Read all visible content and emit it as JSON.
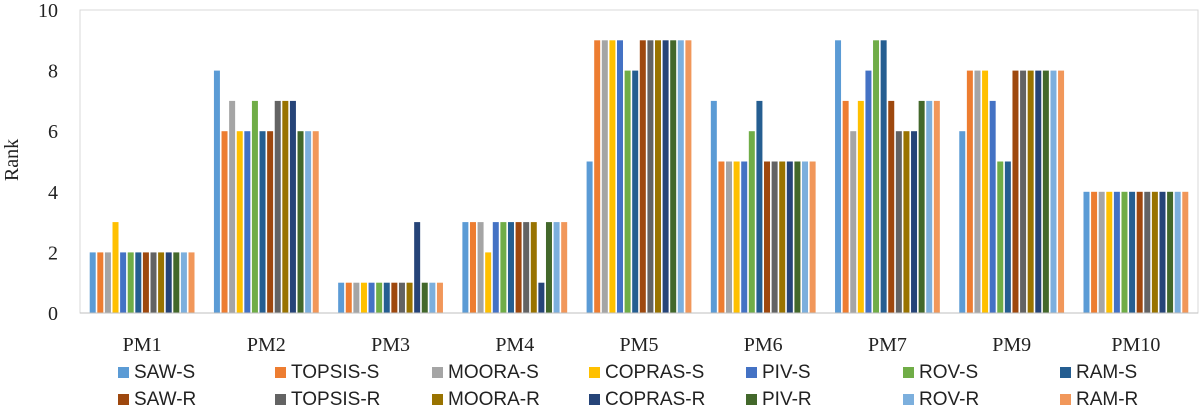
{
  "chart_data": {
    "type": "bar",
    "title": "",
    "xlabel": "",
    "ylabel": "Rank",
    "ylim": [
      0,
      10
    ],
    "yticks": [
      "0",
      "2",
      "4",
      "6",
      "8",
      "10"
    ],
    "grid": false,
    "legend_position": "bottom",
    "categories": [
      "PM1",
      "PM2",
      "PM3",
      "PM4",
      "PM5",
      "PM6",
      "PM7",
      "PM9",
      "PM10"
    ],
    "series": [
      {
        "name": "SAW-S",
        "color": "#5B9BD5",
        "values": [
          2,
          8,
          1,
          3,
          5,
          7,
          9,
          6,
          4
        ]
      },
      {
        "name": "TOPSIS-S",
        "color": "#ED7D31",
        "values": [
          2,
          6,
          1,
          3,
          9,
          5,
          7,
          8,
          4
        ]
      },
      {
        "name": "MOORA-S",
        "color": "#A5A5A5",
        "values": [
          2,
          7,
          1,
          3,
          9,
          5,
          6,
          8,
          4
        ]
      },
      {
        "name": "COPRAS-S",
        "color": "#FFC000",
        "values": [
          3,
          6,
          1,
          2,
          9,
          5,
          7,
          8,
          4
        ]
      },
      {
        "name": "PIV-S",
        "color": "#4472C4",
        "values": [
          2,
          6,
          1,
          3,
          9,
          5,
          8,
          7,
          4
        ]
      },
      {
        "name": "ROV-S",
        "color": "#70AD47",
        "values": [
          2,
          7,
          1,
          3,
          8,
          6,
          9,
          5,
          4
        ]
      },
      {
        "name": "RAM-S",
        "color": "#255E91",
        "values": [
          2,
          6,
          1,
          3,
          8,
          7,
          9,
          5,
          4
        ]
      },
      {
        "name": "SAW-R",
        "color": "#9E480E",
        "values": [
          2,
          6,
          1,
          3,
          9,
          5,
          7,
          8,
          4
        ]
      },
      {
        "name": "TOPSIS-R",
        "color": "#636363",
        "values": [
          2,
          7,
          1,
          3,
          9,
          5,
          6,
          8,
          4
        ]
      },
      {
        "name": "MOORA-R",
        "color": "#997300",
        "values": [
          2,
          7,
          1,
          3,
          9,
          5,
          6,
          8,
          4
        ]
      },
      {
        "name": "COPRAS-R",
        "color": "#264478",
        "values": [
          2,
          7,
          3,
          1,
          9,
          5,
          6,
          8,
          4
        ]
      },
      {
        "name": "PIV-R",
        "color": "#43682B",
        "values": [
          2,
          6,
          1,
          3,
          9,
          5,
          7,
          8,
          4
        ]
      },
      {
        "name": "ROV-R",
        "color": "#7CAFDD",
        "values": [
          2,
          6,
          1,
          3,
          9,
          5,
          7,
          8,
          4
        ]
      },
      {
        "name": "RAM-R",
        "color": "#F1975A",
        "values": [
          2,
          6,
          1,
          3,
          9,
          5,
          7,
          8,
          4
        ]
      }
    ]
  }
}
